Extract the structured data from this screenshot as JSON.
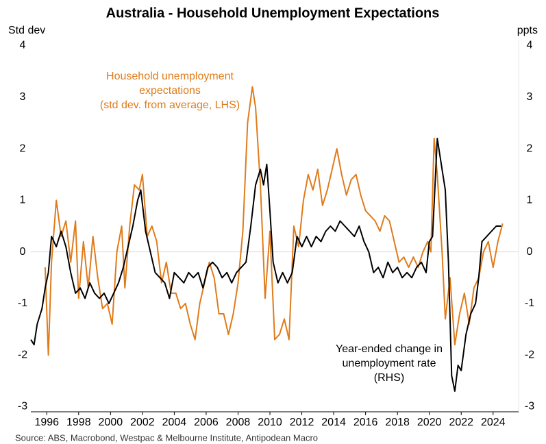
{
  "chart_data": {
    "type": "line",
    "title": "Australia - Household Unemployment Expectations",
    "y_label": "Std dev",
    "y2_label": "ppts",
    "source": "Source: ABS, Macrobond, Westpac & Melbourne Institute, Antipodean Macro",
    "annotations": [
      {
        "lines": [
          "Household unemployment",
          "expectations",
          "(std dev. from average, LHS)"
        ],
        "color": "#e07b1a"
      },
      {
        "lines": [
          "Year-ended change in",
          "unemployment rate",
          "(RHS)"
        ],
        "color": "#000000"
      }
    ],
    "xlim": [
      1995,
      2025.6
    ],
    "xticks": [
      1996,
      1998,
      2000,
      2002,
      2004,
      2006,
      2008,
      2010,
      2012,
      2014,
      2016,
      2018,
      2020,
      2022,
      2024
    ],
    "ylim": [
      -3.1,
      4.1
    ],
    "yticks": [
      -3,
      -2,
      -1,
      0,
      1,
      2,
      3,
      4
    ],
    "y2lim": [
      -3.1,
      4.1
    ],
    "y2ticks": [
      -3,
      -2,
      -1,
      0,
      1,
      2,
      3,
      4
    ],
    "zero_line": true,
    "series": [
      {
        "name": "Household unemployment expectations",
        "color": "#e07b1a",
        "axis": "y",
        "x": [
          1995.9,
          1996.1,
          1996.3,
          1996.6,
          1996.9,
          1997.2,
          1997.5,
          1997.8,
          1998.0,
          1998.3,
          1998.6,
          1998.9,
          1999.2,
          1999.5,
          1999.8,
          2000.1,
          2000.4,
          2000.7,
          2000.9,
          2001.2,
          2001.5,
          2001.8,
          2002.0,
          2002.3,
          2002.6,
          2002.9,
          2003.2,
          2003.5,
          2003.8,
          2004.1,
          2004.4,
          2004.7,
          2005.0,
          2005.3,
          2005.6,
          2005.9,
          2006.2,
          2006.5,
          2006.8,
          2007.1,
          2007.4,
          2007.7,
          2008.0,
          2008.3,
          2008.6,
          2008.9,
          2009.1,
          2009.4,
          2009.7,
          2010.0,
          2010.3,
          2010.6,
          2010.9,
          2011.2,
          2011.5,
          2011.8,
          2012.1,
          2012.4,
          2012.7,
          2013.0,
          2013.3,
          2013.6,
          2013.9,
          2014.2,
          2014.5,
          2014.8,
          2015.1,
          2015.4,
          2015.7,
          2016.0,
          2016.3,
          2016.6,
          2016.9,
          2017.2,
          2017.5,
          2017.8,
          2018.1,
          2018.4,
          2018.7,
          2019.0,
          2019.3,
          2019.6,
          2019.9,
          2020.1,
          2020.3,
          2020.5,
          2020.8,
          2021.0,
          2021.3,
          2021.6,
          2021.9,
          2022.2,
          2022.5,
          2022.8,
          2023.1,
          2023.4,
          2023.7,
          2024.0,
          2024.3,
          2024.6
        ],
        "values": [
          -0.3,
          -2.0,
          -0.2,
          1.0,
          0.3,
          0.6,
          -0.2,
          0.6,
          -0.9,
          0.2,
          -0.7,
          0.3,
          -0.5,
          -1.1,
          -1.0,
          -1.4,
          0.0,
          0.5,
          -0.7,
          0.5,
          1.3,
          1.2,
          1.5,
          0.3,
          0.5,
          0.2,
          -0.6,
          -0.2,
          -0.8,
          -0.8,
          -1.1,
          -1.0,
          -1.4,
          -1.7,
          -1.0,
          -0.6,
          -0.2,
          -0.5,
          -1.2,
          -1.2,
          -1.6,
          -1.2,
          -0.6,
          0.4,
          2.5,
          3.2,
          2.8,
          1.3,
          -0.9,
          0.4,
          -1.7,
          -1.6,
          -1.3,
          -1.7,
          0.5,
          0.1,
          1.0,
          1.5,
          1.2,
          1.6,
          0.9,
          1.2,
          1.6,
          2.0,
          1.5,
          1.1,
          1.4,
          1.5,
          1.1,
          0.8,
          0.7,
          0.6,
          0.4,
          0.7,
          0.6,
          0.2,
          -0.2,
          -0.1,
          -0.3,
          -0.1,
          -0.3,
          0.0,
          0.2,
          0.0,
          2.2,
          1.5,
          0.0,
          -1.3,
          -0.5,
          -1.8,
          -1.2,
          -0.8,
          -1.4,
          -0.7,
          -0.5,
          0.0,
          0.2,
          -0.3,
          0.2,
          0.55
        ]
      },
      {
        "name": "Year-ended change in unemployment rate",
        "color": "#000000",
        "axis": "y2",
        "x": [
          1995.0,
          1995.2,
          1995.4,
          1995.7,
          1995.9,
          1996.1,
          1996.3,
          1996.6,
          1996.9,
          1997.2,
          1997.5,
          1997.8,
          1998.1,
          1998.4,
          1998.7,
          1999.0,
          1999.3,
          1999.6,
          1999.9,
          2000.2,
          2000.5,
          2000.8,
          2001.1,
          2001.4,
          2001.7,
          2001.9,
          2002.2,
          2002.5,
          2002.8,
          2003.1,
          2003.4,
          2003.7,
          2004.0,
          2004.3,
          2004.6,
          2004.9,
          2005.2,
          2005.5,
          2005.8,
          2006.1,
          2006.4,
          2006.7,
          2007.0,
          2007.3,
          2007.6,
          2007.9,
          2008.2,
          2008.5,
          2008.8,
          2009.1,
          2009.4,
          2009.6,
          2009.8,
          2010.0,
          2010.2,
          2010.5,
          2010.8,
          2011.1,
          2011.4,
          2011.7,
          2012.0,
          2012.3,
          2012.6,
          2012.9,
          2013.2,
          2013.5,
          2013.8,
          2014.1,
          2014.4,
          2014.7,
          2015.0,
          2015.3,
          2015.6,
          2015.9,
          2016.2,
          2016.5,
          2016.8,
          2017.1,
          2017.4,
          2017.7,
          2018.0,
          2018.3,
          2018.6,
          2018.9,
          2019.2,
          2019.5,
          2019.8,
          2020.0,
          2020.2,
          2020.5,
          2020.8,
          2021.0,
          2021.2,
          2021.4,
          2021.6,
          2021.8,
          2022.0,
          2022.3,
          2022.6,
          2022.9,
          2023.1,
          2023.3,
          2023.6,
          2023.9,
          2024.2,
          2024.5
        ],
        "values": [
          -1.7,
          -1.8,
          -1.4,
          -1.1,
          -0.7,
          -0.4,
          0.3,
          0.1,
          0.4,
          0.1,
          -0.4,
          -0.8,
          -0.7,
          -0.9,
          -0.6,
          -0.8,
          -0.9,
          -0.8,
          -1.0,
          -0.8,
          -0.6,
          -0.3,
          0.1,
          0.5,
          1.0,
          1.2,
          0.4,
          0.0,
          -0.4,
          -0.5,
          -0.6,
          -0.9,
          -0.4,
          -0.5,
          -0.6,
          -0.4,
          -0.5,
          -0.4,
          -0.7,
          -0.3,
          -0.2,
          -0.3,
          -0.5,
          -0.4,
          -0.6,
          -0.4,
          -0.3,
          -0.2,
          0.5,
          1.3,
          1.6,
          1.3,
          1.7,
          0.8,
          -0.2,
          -0.6,
          -0.4,
          -0.6,
          -0.4,
          0.3,
          0.1,
          0.3,
          0.1,
          0.3,
          0.2,
          0.4,
          0.5,
          0.4,
          0.6,
          0.5,
          0.4,
          0.3,
          0.5,
          0.2,
          0.0,
          -0.4,
          -0.3,
          -0.5,
          -0.2,
          -0.4,
          -0.3,
          -0.5,
          -0.4,
          -0.5,
          -0.3,
          -0.2,
          -0.4,
          0.2,
          0.3,
          2.2,
          1.6,
          1.2,
          -0.2,
          -2.4,
          -2.7,
          -2.2,
          -2.3,
          -1.6,
          -1.2,
          -1.0,
          -0.5,
          0.2,
          0.3,
          0.4,
          0.5,
          0.5
        ]
      }
    ]
  }
}
